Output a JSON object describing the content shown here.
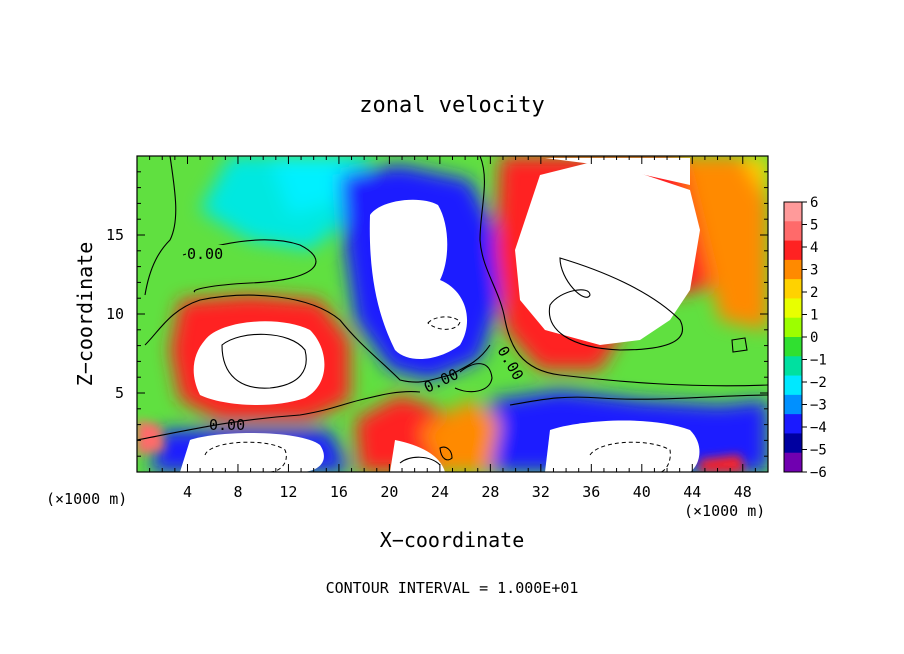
{
  "chart_data": {
    "type": "heatmap",
    "title": "zonal velocity",
    "xlabel": "X−coordinate",
    "ylabel": "Z−coordinate",
    "x_unit_left": "(×1000 m)",
    "x_unit_right": "(×1000 m)",
    "footer": "CONTOUR INTERVAL = 1.000E+01",
    "xlim": [
      0,
      50
    ],
    "ylim": [
      0,
      20
    ],
    "x_ticks": [
      "4",
      "8",
      "12",
      "16",
      "20",
      "24",
      "28",
      "32",
      "36",
      "40",
      "44",
      "48"
    ],
    "y_ticks": [
      "5",
      "10",
      "15"
    ],
    "colorbar": {
      "labels": [
        "6",
        "5",
        "4",
        "3",
        "2",
        "1",
        "0",
        "−1",
        "−2",
        "−3",
        "−4",
        "−5",
        "−6"
      ],
      "colors": [
        "#ff9a9a",
        "#ff6a6a",
        "#ff2222",
        "#ff8a00",
        "#ffd200",
        "#e8ff00",
        "#9cff00",
        "#30e030",
        "#00e0a0",
        "#00e8ff",
        "#0090ff",
        "#1a1aff",
        "#0000a0",
        "#7000b0"
      ]
    },
    "contour_labels": [
      "0.00",
      "0.00",
      "0.00",
      "0.00"
    ]
  }
}
